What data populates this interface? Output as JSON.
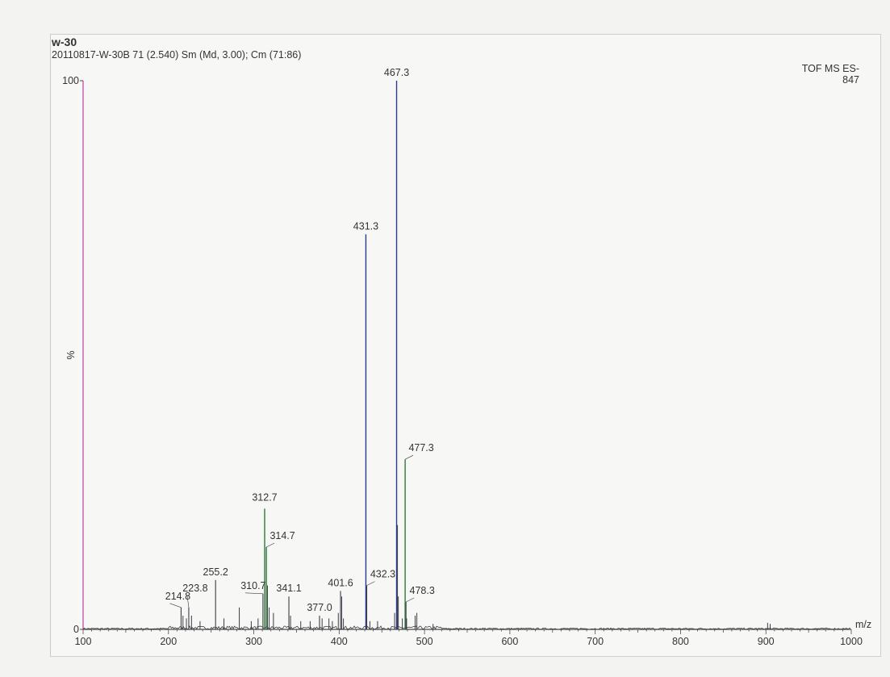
{
  "header": {
    "title": "w-30",
    "subtitle": "20110817-W-30B  71 (2.540) Sm (Md, 3.00); Cm (71:86)",
    "instrument": "TOF MS ES-",
    "base_intensity": "847"
  },
  "chart_data": {
    "type": "bar",
    "title": "w-30",
    "subtitle": "20110817-W-30B  71 (2.540) Sm (Md, 3.00); Cm (71:86)",
    "xlabel": "m/z",
    "ylabel": "%",
    "xlim": [
      100,
      1000
    ],
    "ylim": [
      0,
      100
    ],
    "x_ticks": [
      100,
      200,
      300,
      400,
      500,
      600,
      700,
      800,
      900,
      1000
    ],
    "y_ticks": [
      "0",
      "100"
    ],
    "grid": false,
    "labeled_peaks": [
      {
        "mz": 214.8,
        "intensity": 4,
        "label": "214.8"
      },
      {
        "mz": 223.8,
        "intensity": 4,
        "label": "223.8"
      },
      {
        "mz": 255.2,
        "intensity": 9,
        "label": "255.2"
      },
      {
        "mz": 310.7,
        "intensity": 6.5,
        "label": "310.7"
      },
      {
        "mz": 312.7,
        "intensity": 22,
        "label": "312.7"
      },
      {
        "mz": 314.7,
        "intensity": 15,
        "label": "314.7"
      },
      {
        "mz": 341.1,
        "intensity": 6,
        "label": "341.1"
      },
      {
        "mz": 377.0,
        "intensity": 2.5,
        "label": "377.0"
      },
      {
        "mz": 401.6,
        "intensity": 7,
        "label": "401.6"
      },
      {
        "mz": 431.3,
        "intensity": 72,
        "label": "431.3"
      },
      {
        "mz": 432.3,
        "intensity": 8,
        "label": "432.3"
      },
      {
        "mz": 467.3,
        "intensity": 100,
        "label": "467.3"
      },
      {
        "mz": 477.3,
        "intensity": 31,
        "label": "477.3"
      },
      {
        "mz": 478.3,
        "intensity": 5,
        "label": "478.3"
      }
    ],
    "minor_peaks": [
      {
        "mz": 217,
        "intensity": 2.5
      },
      {
        "mz": 221,
        "intensity": 2
      },
      {
        "mz": 227,
        "intensity": 2.5
      },
      {
        "mz": 237,
        "intensity": 1.5
      },
      {
        "mz": 265,
        "intensity": 2
      },
      {
        "mz": 283,
        "intensity": 4
      },
      {
        "mz": 297,
        "intensity": 1.5
      },
      {
        "mz": 305,
        "intensity": 2
      },
      {
        "mz": 316,
        "intensity": 8
      },
      {
        "mz": 318,
        "intensity": 4
      },
      {
        "mz": 323,
        "intensity": 3
      },
      {
        "mz": 343,
        "intensity": 2.5
      },
      {
        "mz": 355,
        "intensity": 1.5
      },
      {
        "mz": 366,
        "intensity": 1.5
      },
      {
        "mz": 380,
        "intensity": 2
      },
      {
        "mz": 388,
        "intensity": 2
      },
      {
        "mz": 392,
        "intensity": 1.5
      },
      {
        "mz": 399,
        "intensity": 3
      },
      {
        "mz": 403,
        "intensity": 6
      },
      {
        "mz": 405,
        "intensity": 2
      },
      {
        "mz": 436,
        "intensity": 1.5
      },
      {
        "mz": 445,
        "intensity": 1.5
      },
      {
        "mz": 465,
        "intensity": 3
      },
      {
        "mz": 468.3,
        "intensity": 19
      },
      {
        "mz": 469.3,
        "intensity": 6
      },
      {
        "mz": 474,
        "intensity": 2
      },
      {
        "mz": 479,
        "intensity": 2
      },
      {
        "mz": 489,
        "intensity": 2.5
      },
      {
        "mz": 491,
        "intensity": 3
      },
      {
        "mz": 510,
        "intensity": 1
      },
      {
        "mz": 902,
        "intensity": 1.2
      },
      {
        "mz": 905,
        "intensity": 1
      }
    ],
    "colors": {
      "trace": "#3c3c46",
      "major_peak_a": "#2e3a8a",
      "major_peak_b": "#2f7a3a",
      "y_axis": "#c45ab0",
      "x_axis": "#4a4a4a"
    }
  }
}
